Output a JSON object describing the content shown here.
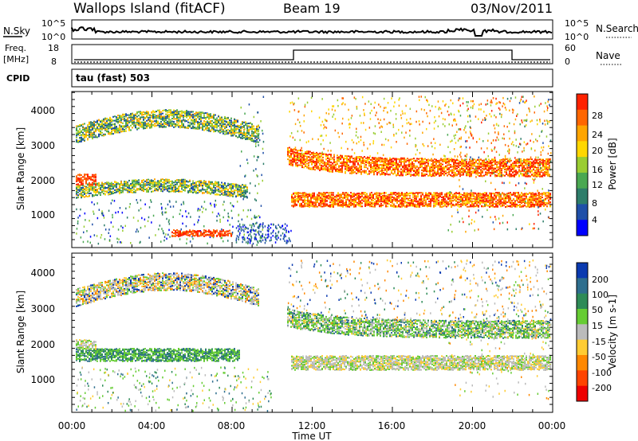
{
  "header": {
    "station": "Wallops Island (fitACF)",
    "beam": "Beam 19",
    "date": "03/Nov/2011"
  },
  "noise_panel": {
    "left_label": "N.Sky",
    "right_label": "N.Search",
    "ticks_left": [
      "10^5",
      "10^0"
    ],
    "ticks_right": [
      "10^5",
      "10^0"
    ]
  },
  "freq_panel": {
    "left_label_1": "Freq.",
    "left_label_2": "[MHz]",
    "right_label": "Nave",
    "ticks_left": [
      "18",
      "8"
    ],
    "ticks_right": [
      "60",
      "0"
    ]
  },
  "cpid_panel": {
    "label": "CPID",
    "text": "tau (fast) 503"
  },
  "chart_data": [
    {
      "type": "heatmap",
      "panel": "power",
      "ylabel": "Slant Range [km]",
      "ylim": [
        180,
        4500
      ],
      "yticks": [
        "1000",
        "2000",
        "3000",
        "4000"
      ],
      "colorbar_label": "Power [dB]",
      "colorbar_ticks": [
        "4",
        "8",
        "12",
        "16",
        "20",
        "24",
        "28"
      ],
      "colors": [
        "#0000ff",
        "#1f4fa8",
        "#2e7d6a",
        "#4aa852",
        "#9acd32",
        "#ffd700",
        "#ffa500",
        "#ff6600",
        "#ff2200"
      ]
    },
    {
      "type": "heatmap",
      "panel": "velocity",
      "ylabel": "Slant Range [km]",
      "ylim": [
        180,
        4500
      ],
      "yticks": [
        "1000",
        "2000",
        "3000",
        "4000"
      ],
      "colorbar_label": "Velocity [m s-1]",
      "colorbar_ticks": [
        "200",
        "100",
        "50",
        "15",
        "-15",
        "-50",
        "-100",
        "-200"
      ],
      "colors": [
        "#0a3ab0",
        "#2e6e8e",
        "#2e8b57",
        "#66cc33",
        "#bbbbbb",
        "#ffcc33",
        "#ff8800",
        "#ff4400",
        "#ee0000"
      ]
    }
  ],
  "time_axis": {
    "label": "Time UT",
    "ticks": [
      "00:00",
      "04:00",
      "08:00",
      "12:00",
      "16:00",
      "20:00",
      "00:00"
    ]
  }
}
